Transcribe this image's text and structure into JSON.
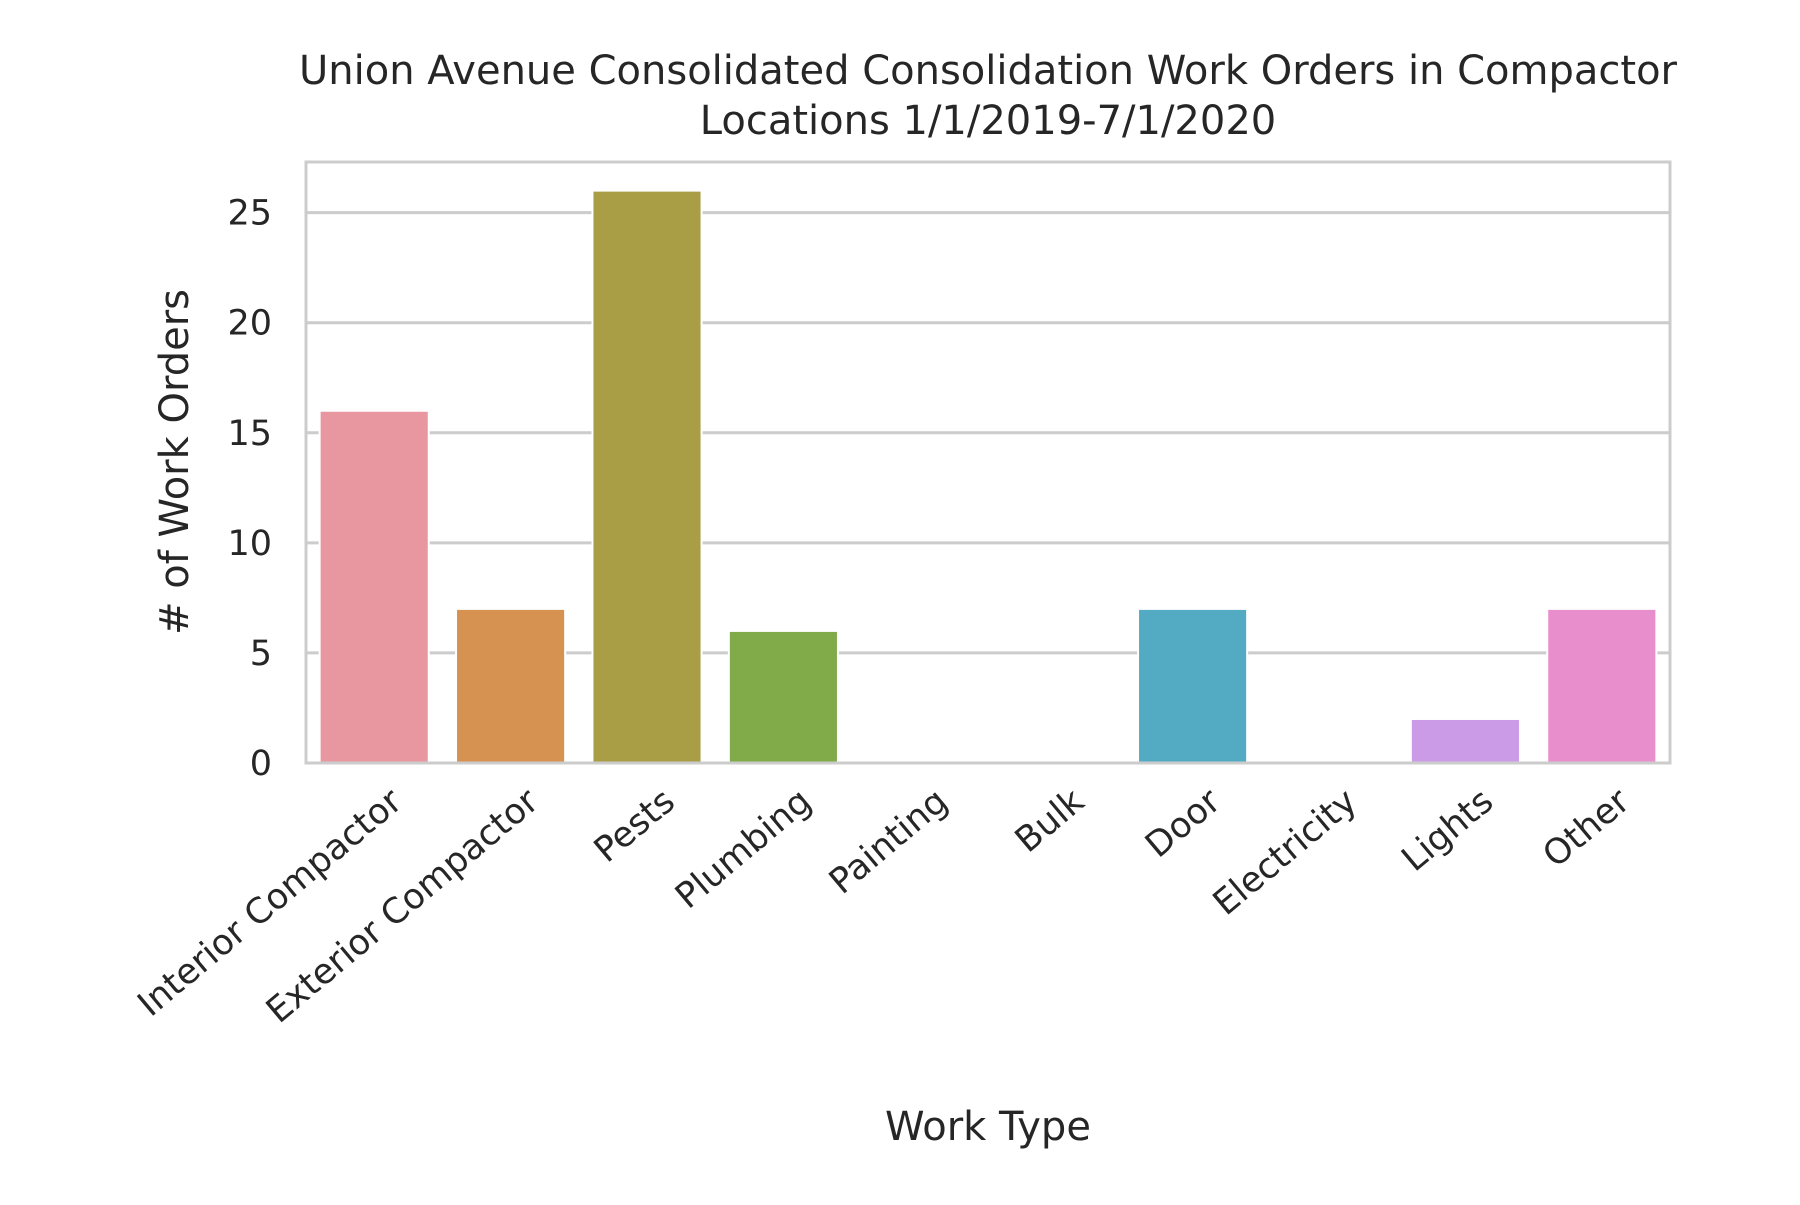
{
  "chart_data": {
    "type": "bar",
    "title_lines": [
      "Union Avenue Consolidated Consolidation Work Orders in Compactor",
      "Locations 1/1/2019-7/1/2020"
    ],
    "xlabel": "Work Type",
    "ylabel": "# of Work Orders",
    "categories": [
      "Interior Compactor",
      "Exterior Compactor",
      "Pests",
      "Plumbing",
      "Painting",
      "Bulk",
      "Door",
      "Electricity",
      "Lights",
      "Other"
    ],
    "values": [
      16,
      7,
      26,
      6,
      0,
      0,
      7,
      0,
      2,
      7
    ],
    "colors": [
      "#e8969f",
      "#d69250",
      "#a99d46",
      "#81aa48",
      "#59ae4c",
      "#55ae8d",
      "#53abc3",
      "#6da3e6",
      "#cb9be8",
      "#e98ecc"
    ],
    "ylim": [
      0,
      27.3
    ],
    "yticks": [
      0,
      5,
      10,
      15,
      20,
      25
    ],
    "grid": "horizontal",
    "spine_color": "#cccccc",
    "grid_color": "#cccccc"
  }
}
